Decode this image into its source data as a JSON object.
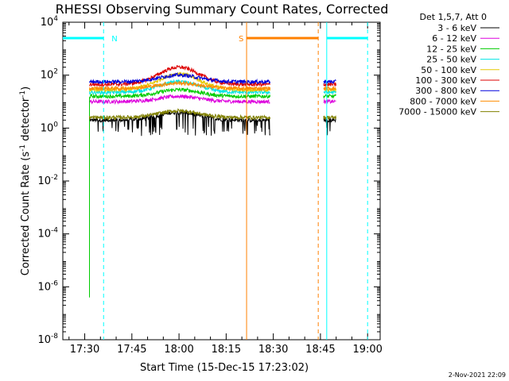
{
  "chart_data": {
    "type": "line",
    "title": "RHESSI Observing Summary Count Rates, Corrected",
    "xlabel": "Start Time (15-Dec-15 17:23:02)",
    "ylabel_parts": [
      "Corrected Count Rate (s",
      "-1",
      " detector",
      "-1",
      ")"
    ],
    "y_scale": "log",
    "ylim": [
      1e-08,
      10000.0
    ],
    "xlim": [
      "17:23:02",
      "19:04:00"
    ],
    "x_tick_labels": [
      "17:30",
      "17:45",
      "18:00",
      "18:15",
      "18:30",
      "18:45",
      "19:00"
    ],
    "x_ticks_minutes": [
      1050,
      1065,
      1080,
      1095,
      1110,
      1125,
      1140
    ],
    "y_tick_labels": [
      {
        "base": "10",
        "exp": "4",
        "value": 4
      },
      {
        "base": "10",
        "exp": "2",
        "value": 2
      },
      {
        "base": "10",
        "exp": "0",
        "value": 0
      },
      {
        "base": "10",
        "exp": "-2",
        "value": -2
      },
      {
        "base": "10",
        "exp": "-4",
        "value": -4
      },
      {
        "base": "10",
        "exp": "-6",
        "value": -6
      },
      {
        "base": "10",
        "exp": "-8",
        "value": -8
      }
    ],
    "legend_header": "Det 1,5,7, Att 0",
    "series": [
      {
        "name": "3 - 6 keV",
        "color": "#000000",
        "base_log": 0.3,
        "peak_log": 0.6,
        "gaps": true
      },
      {
        "name": "6 - 12 keV",
        "color": "#dd00dd",
        "base_log": 1.0,
        "peak_log": 1.2
      },
      {
        "name": "12 - 25 keV",
        "color": "#00cc00",
        "base_log": 1.2,
        "peak_log": 1.45
      },
      {
        "name": "25 - 50 keV",
        "color": "#00e5e5",
        "base_log": 1.35,
        "peak_log": 1.75
      },
      {
        "name": "50 - 100 keV",
        "color": "#e5c800",
        "base_log": 1.45,
        "peak_log": 2.05
      },
      {
        "name": "100 - 300 keV",
        "color": "#dd0000",
        "base_log": 1.65,
        "peak_log": 2.3
      },
      {
        "name": "300 - 800 keV",
        "color": "#0000dd",
        "base_log": 1.75,
        "peak_log": 2.0
      },
      {
        "name": "800 - 7000 keV",
        "color": "#ff8c00",
        "base_log": 1.5,
        "peak_log": 1.7
      },
      {
        "name": "7000 - 15000 keV",
        "color": "#808000",
        "base_log": 0.4,
        "peak_log": 0.65
      }
    ],
    "data_intervals": [
      {
        "start_min": 1051.5,
        "end_min": 1109.0
      },
      {
        "start_min": 1126.0,
        "end_min": 1130.0
      }
    ],
    "peak_time_min": 1080,
    "drop_series": "12 - 25 keV",
    "drop_time_min": 1051.5,
    "drop_to_log": -6.4,
    "night_intervals": [
      {
        "label": "N",
        "start_min": 1043.0,
        "end_min": 1056.0,
        "color": "#00ffff"
      },
      {
        "label": "",
        "start_min": 1127.0,
        "end_min": 1140.0,
        "color": "#00ffff"
      }
    ],
    "saa_intervals": [
      {
        "label": "S",
        "start_min": 1101.5,
        "end_min": 1124.3,
        "color": "#ff8000"
      }
    ],
    "bar_level_log": 3.4,
    "grid": false,
    "legend_position": "top-right",
    "timestamp": "2-Nov-2021 22:09"
  }
}
